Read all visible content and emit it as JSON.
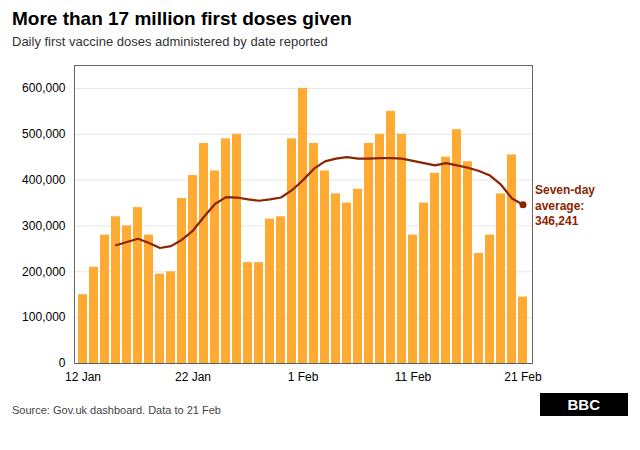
{
  "chart_data": {
    "type": "bar",
    "title": "More than 17 million first doses given",
    "subtitle": "Daily first vaccine doses administered by date reported",
    "source": "Source: Gov.uk dashboard. Data to 21 Feb",
    "annotations": [
      "Seven-day\naverage:\n346,241",
      "BBC"
    ],
    "categories": [
      "12 Jan",
      null,
      null,
      null,
      null,
      null,
      null,
      null,
      null,
      null,
      "22 Jan",
      null,
      null,
      null,
      null,
      null,
      null,
      null,
      null,
      null,
      "1 Feb",
      null,
      null,
      null,
      null,
      null,
      null,
      null,
      null,
      null,
      "11 Feb",
      null,
      null,
      null,
      null,
      null,
      null,
      null,
      null,
      null,
      "21 Feb"
    ],
    "series": [
      {
        "type": "bar",
        "color": "#FFAA33",
        "values": [
          150000,
          210000,
          280000,
          320000,
          300000,
          340000,
          280000,
          195000,
          200000,
          360000,
          410000,
          480000,
          420000,
          490000,
          500000,
          220000,
          220000,
          315000,
          320000,
          490000,
          600000,
          480000,
          420000,
          370000,
          350000,
          380000,
          480000,
          500000,
          550000,
          500000,
          280000,
          350000,
          415000,
          450000,
          510000,
          440000,
          240000,
          280000,
          370000,
          455000,
          145000
        ]
      },
      {
        "type": "line",
        "color": "#8B2500",
        "values": [
          null,
          null,
          null,
          258000,
          265000,
          272000,
          263000,
          252000,
          256000,
          270000,
          290000,
          320000,
          348000,
          363000,
          362000,
          358000,
          355000,
          358000,
          362000,
          378000,
          400000,
          425000,
          441000,
          447000,
          450000,
          447000,
          447000,
          448000,
          448000,
          447000,
          442000,
          437000,
          432000,
          437000,
          432000,
          427000,
          420000,
          410000,
          390000,
          360000,
          346241
        ]
      }
    ],
    "ylim": [
      0,
      650000
    ],
    "yticks": [
      0,
      {
        "value": 100000,
        "label": "100,000"
      },
      {
        "value": 200000,
        "label": "200,000"
      },
      {
        "value": 300000,
        "label": "300,000"
      },
      {
        "value": 400000,
        "label": "400,000"
      },
      {
        "value": 500000,
        "label": "500,000"
      },
      {
        "value": 600000,
        "label": "600,000"
      }
    ],
    "grid": true
  }
}
